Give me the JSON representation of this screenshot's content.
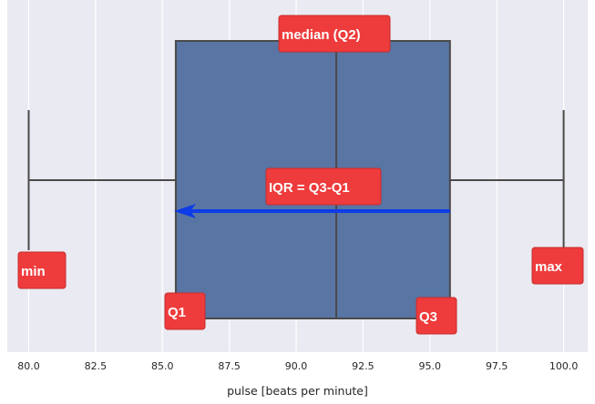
{
  "chart_data": {
    "type": "box",
    "orientation": "horizontal",
    "xlabel": "pulse [beats per minute]",
    "xlim": [
      79.2,
      100.9
    ],
    "xticks": [
      "80.0",
      "82.5",
      "85.0",
      "87.5",
      "90.0",
      "92.5",
      "95.0",
      "97.5",
      "100.0"
    ],
    "grid": true,
    "box": {
      "min": 80.0,
      "q1": 85.5,
      "median": 91.5,
      "q3": 95.75,
      "max": 100.0,
      "color": "#5875a4",
      "line_color": "#4a4a4a"
    },
    "annotations": [
      {
        "id": "median",
        "text": "median (Q2)",
        "x": 91.5
      },
      {
        "id": "iqr",
        "text": "IQR = Q3-Q1",
        "arrow_from": 95.75,
        "arrow_to": 85.5
      },
      {
        "id": "min",
        "text": "min",
        "x": 80.0
      },
      {
        "id": "max",
        "text": "max",
        "x": 100.0
      },
      {
        "id": "q1",
        "text": "Q1",
        "x": 85.5
      },
      {
        "id": "q3",
        "text": "Q3",
        "x": 95.75
      }
    ],
    "colors": {
      "background": "#eaeaf2",
      "grid": "#ffffff",
      "annotation_box": "#ee3b3b",
      "arrow": "#0d3ce8"
    }
  }
}
